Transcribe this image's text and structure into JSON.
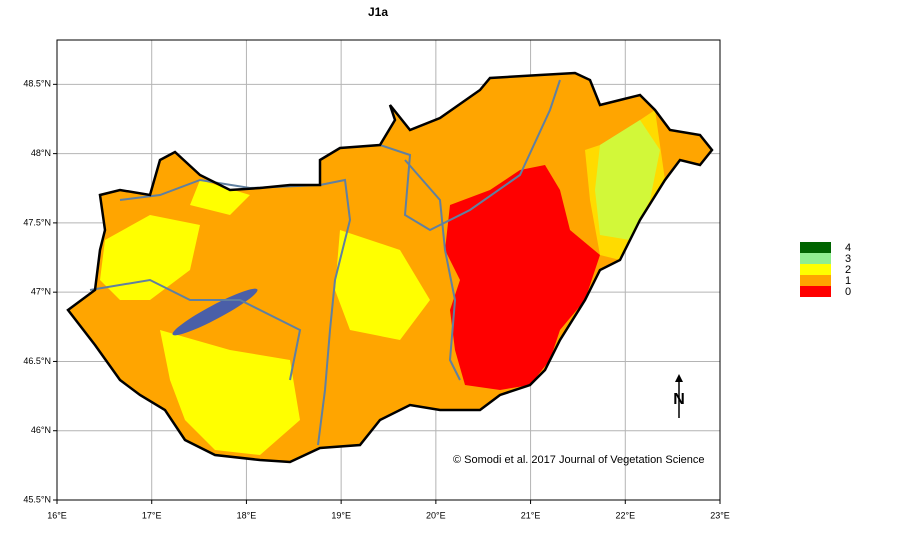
{
  "title": "J1a",
  "map": {
    "xlim": [
      16,
      23
    ],
    "ylim": [
      45.5,
      48.82
    ],
    "xticks": [
      {
        "value": 16,
        "label": "16°E"
      },
      {
        "value": 17,
        "label": "17°E"
      },
      {
        "value": 18,
        "label": "18°E"
      },
      {
        "value": 19,
        "label": "19°E"
      },
      {
        "value": 20,
        "label": "20°E"
      },
      {
        "value": 21,
        "label": "21°E"
      },
      {
        "value": 22,
        "label": "22°E"
      },
      {
        "value": 23,
        "label": "23°E"
      }
    ],
    "yticks": [
      {
        "value": 45.5,
        "label": "45.5°N"
      },
      {
        "value": 46,
        "label": "46°N"
      },
      {
        "value": 46.5,
        "label": "46.5°N"
      },
      {
        "value": 47,
        "label": "47°N"
      },
      {
        "value": 47.5,
        "label": "47.5°N"
      },
      {
        "value": 48,
        "label": "48°N"
      },
      {
        "value": 48.5,
        "label": "48.5°N"
      }
    ],
    "grid": true
  },
  "legend": [
    {
      "label": "4",
      "color": "#006400"
    },
    {
      "label": "3",
      "color": "#90ee90"
    },
    {
      "label": "2",
      "color": "#ffff00"
    },
    {
      "label": "1",
      "color": "#ffa500"
    },
    {
      "label": "0",
      "color": "#ff0000"
    }
  ],
  "north_label": "N",
  "credit": "© Somodi et al. 2017 Journal of Vegetation Science"
}
